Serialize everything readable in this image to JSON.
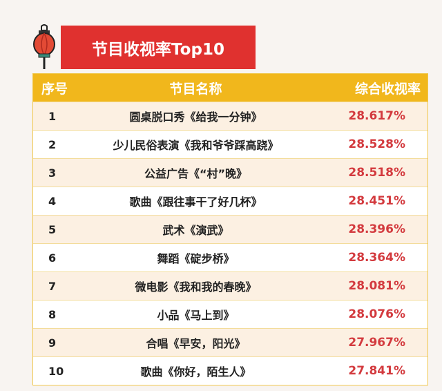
{
  "title": "节目收视率Top10",
  "colors": {
    "title_bg": "#e0312f",
    "header_bg": "#f1b71c",
    "rating": "#d33a3e",
    "row_alt": "#fcf0e2"
  },
  "icon": "lantern-icon",
  "table": {
    "headers": [
      "序号",
      "节目名称",
      "综合收视率"
    ],
    "rows": [
      {
        "rank": "1",
        "name": "圆桌脱口秀《给我一分钟》",
        "rating": "28.617%"
      },
      {
        "rank": "2",
        "name": "少儿民俗表演《我和爷爷踩高跷》",
        "rating": "28.528%"
      },
      {
        "rank": "3",
        "name": "公益广告《“村”晚》",
        "rating": "28.518%"
      },
      {
        "rank": "4",
        "name": "歌曲《跟往事干了好几杯》",
        "rating": "28.451%"
      },
      {
        "rank": "5",
        "name": "武术《演武》",
        "rating": "28.396%"
      },
      {
        "rank": "6",
        "name": "舞蹈《碇步桥》",
        "rating": "28.364%"
      },
      {
        "rank": "7",
        "name": "微电影《我和我的春晚》",
        "rating": "28.081%"
      },
      {
        "rank": "8",
        "name": "小品《马上到》",
        "rating": "28.076%"
      },
      {
        "rank": "9",
        "name": "合唱《早安，阳光》",
        "rating": "27.967%"
      },
      {
        "rank": "10",
        "name": "歌曲《你好，陌生人》",
        "rating": "27.841%"
      }
    ]
  }
}
